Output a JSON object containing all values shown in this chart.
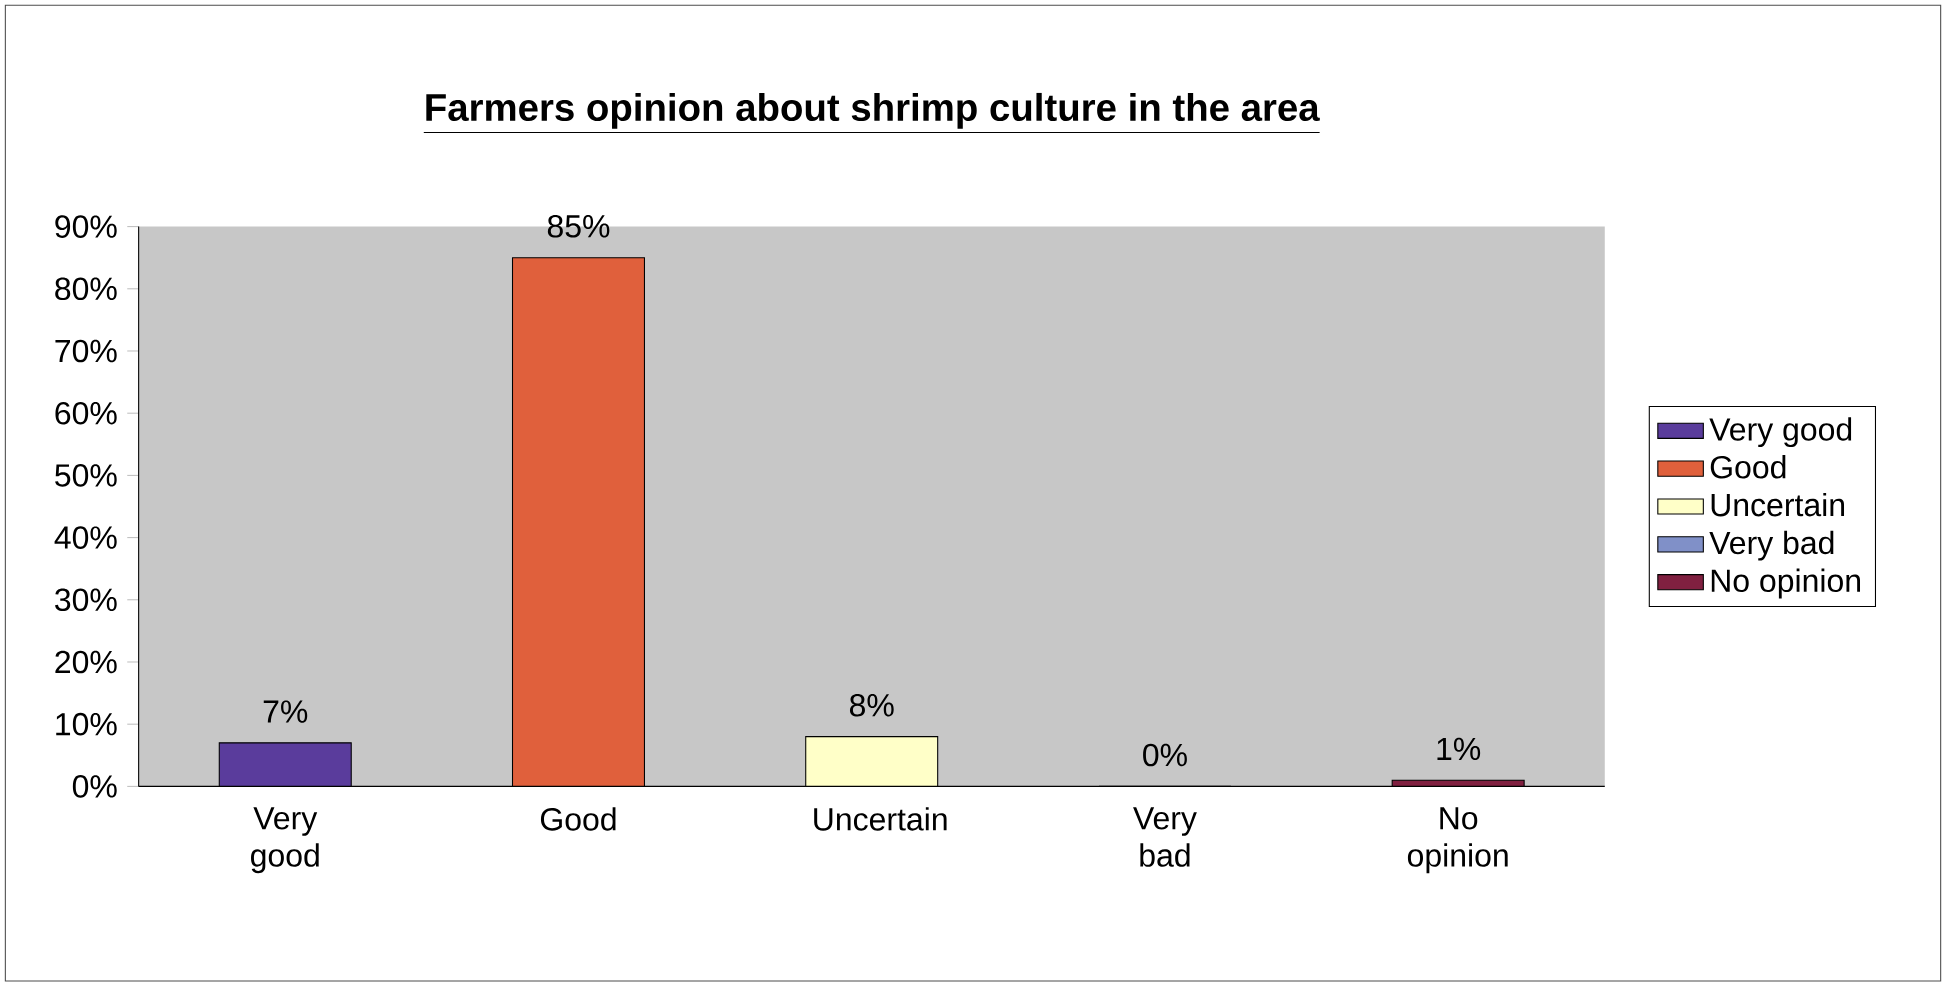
{
  "chart_data": {
    "type": "bar",
    "title": "Farmers opinion about shrimp culture in the area",
    "categories": [
      "Very good",
      "Good",
      "Uncertain",
      "Very bad",
      "No opinion"
    ],
    "series": [
      {
        "name": "Very good",
        "color": "#5a3c9c",
        "values": [
          7,
          null,
          null,
          null,
          null
        ],
        "value_labels": [
          "7%",
          null,
          null,
          null,
          null
        ]
      },
      {
        "name": "Good",
        "color": "#e0603c",
        "values": [
          null,
          85,
          null,
          null,
          null
        ],
        "value_labels": [
          null,
          "85%",
          null,
          null,
          null
        ]
      },
      {
        "name": "Uncertain",
        "color": "#ffffc8",
        "values": [
          null,
          null,
          8,
          null,
          null
        ],
        "value_labels": [
          null,
          null,
          "8%",
          null,
          null
        ]
      },
      {
        "name": "Very bad",
        "color": "#8090c8",
        "values": [
          null,
          null,
          null,
          0,
          null
        ],
        "value_labels": [
          null,
          null,
          null,
          "0%",
          null
        ]
      },
      {
        "name": "No opinion",
        "color": "#802040",
        "values": [
          null,
          null,
          null,
          null,
          1
        ],
        "value_labels": [
          null,
          null,
          null,
          null,
          "1%"
        ]
      }
    ],
    "ylim": [
      0,
      90
    ],
    "yticks": [
      {
        "value": 0,
        "label": "0%"
      },
      {
        "value": 10,
        "label": "10%"
      },
      {
        "value": 20,
        "label": "20%"
      },
      {
        "value": 30,
        "label": "30%"
      },
      {
        "value": 40,
        "label": "40%"
      },
      {
        "value": 50,
        "label": "50%"
      },
      {
        "value": 60,
        "label": "60%"
      },
      {
        "value": 70,
        "label": "70%"
      },
      {
        "value": 80,
        "label": "80%"
      },
      {
        "value": 90,
        "label": "90%"
      }
    ],
    "legend": "right"
  }
}
